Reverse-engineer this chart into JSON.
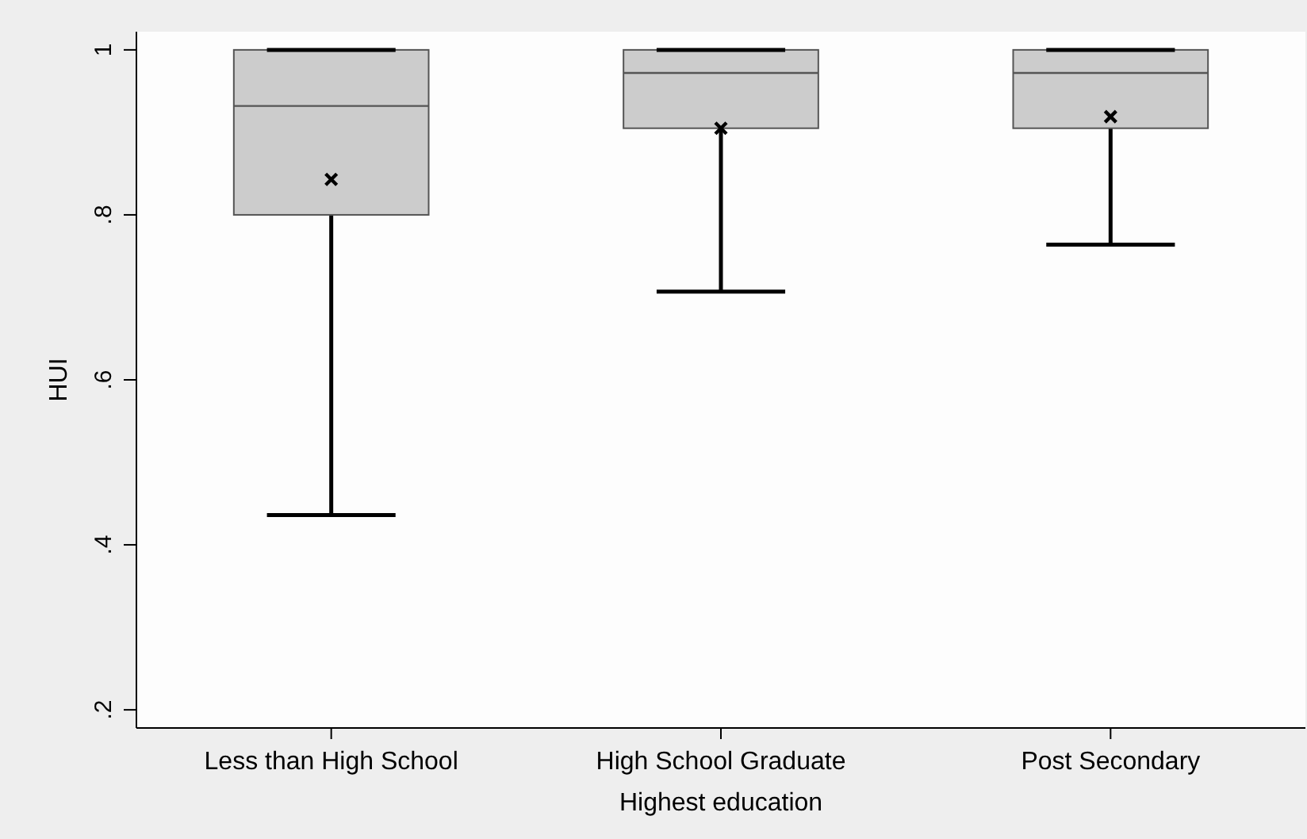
{
  "chart_data": {
    "type": "box",
    "xlabel": "Highest education",
    "ylabel": "HUI",
    "categories": [
      "Less than High School",
      "High School Graduate",
      "Post Secondary"
    ],
    "boxes": [
      {
        "low": 0.436,
        "q1": 0.8,
        "median": 0.932,
        "q3": 1,
        "high": 1,
        "mean": 0.843
      },
      {
        "low": 0.707,
        "q1": 0.905,
        "median": 0.972,
        "q3": 1,
        "high": 1,
        "mean": 0.905
      },
      {
        "low": 0.764,
        "q1": 0.905,
        "median": 0.972,
        "q3": 1,
        "high": 1,
        "mean": 0.919
      }
    ],
    "color": "#cccccc",
    "marker": "cross",
    "grid": false,
    "ylim": [
      0.178,
      1.022
    ],
    "yticks": [
      {
        "value": 0.2,
        "label": ".2"
      },
      {
        "value": 0.4,
        "label": ".4"
      },
      {
        "value": 0.6,
        "label": ".6"
      },
      {
        "value": 0.8,
        "label": ".8"
      },
      {
        "value": 1,
        "label": "1"
      }
    ]
  }
}
